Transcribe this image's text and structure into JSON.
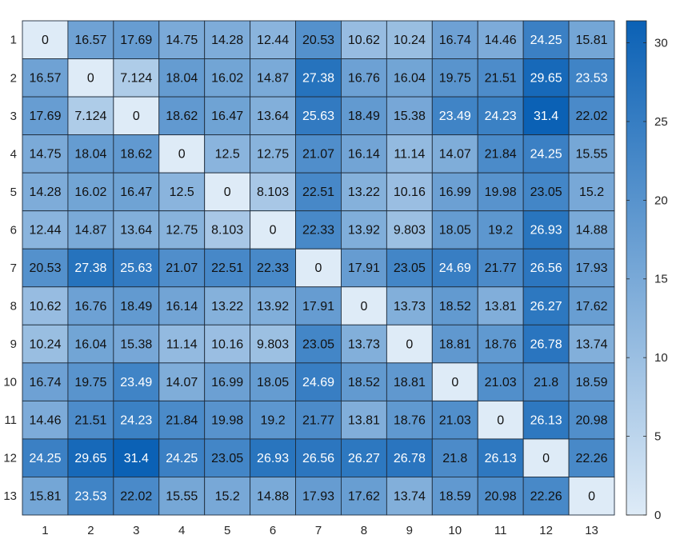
{
  "chart_data": {
    "type": "heatmap",
    "title": "",
    "xlabel": "",
    "ylabel": "",
    "x_categories": [
      "1",
      "2",
      "3",
      "4",
      "5",
      "6",
      "7",
      "8",
      "9",
      "10",
      "11",
      "12",
      "13"
    ],
    "y_categories": [
      "1",
      "2",
      "3",
      "4",
      "5",
      "6",
      "7",
      "8",
      "9",
      "10",
      "11",
      "12",
      "13"
    ],
    "labels": [
      [
        "0",
        "16.57",
        "17.69",
        "14.75",
        "14.28",
        "12.44",
        "20.53",
        "10.62",
        "10.24",
        "16.74",
        "14.46",
        "24.25",
        "15.81"
      ],
      [
        "16.57",
        "0",
        "7.124",
        "18.04",
        "16.02",
        "14.87",
        "27.38",
        "16.76",
        "16.04",
        "19.75",
        "21.51",
        "29.65",
        "23.53"
      ],
      [
        "17.69",
        "7.124",
        "0",
        "18.62",
        "16.47",
        "13.64",
        "25.63",
        "18.49",
        "15.38",
        "23.49",
        "24.23",
        "31.4",
        "22.02"
      ],
      [
        "14.75",
        "18.04",
        "18.62",
        "0",
        "12.5",
        "12.75",
        "21.07",
        "16.14",
        "11.14",
        "14.07",
        "21.84",
        "24.25",
        "15.55"
      ],
      [
        "14.28",
        "16.02",
        "16.47",
        "12.5",
        "0",
        "8.103",
        "22.51",
        "13.22",
        "10.16",
        "16.99",
        "19.98",
        "23.05",
        "15.2"
      ],
      [
        "12.44",
        "14.87",
        "13.64",
        "12.75",
        "8.103",
        "0",
        "22.33",
        "13.92",
        "9.803",
        "18.05",
        "19.2",
        "26.93",
        "14.88"
      ],
      [
        "20.53",
        "27.38",
        "25.63",
        "21.07",
        "22.51",
        "22.33",
        "0",
        "17.91",
        "23.05",
        "24.69",
        "21.77",
        "26.56",
        "17.93"
      ],
      [
        "10.62",
        "16.76",
        "18.49",
        "16.14",
        "13.22",
        "13.92",
        "17.91",
        "0",
        "13.73",
        "18.52",
        "13.81",
        "26.27",
        "17.62"
      ],
      [
        "10.24",
        "16.04",
        "15.38",
        "11.14",
        "10.16",
        "9.803",
        "23.05",
        "13.73",
        "0",
        "18.81",
        "18.76",
        "26.78",
        "13.74"
      ],
      [
        "16.74",
        "19.75",
        "23.49",
        "14.07",
        "16.99",
        "18.05",
        "24.69",
        "18.52",
        "18.81",
        "0",
        "21.03",
        "21.8",
        "18.59"
      ],
      [
        "14.46",
        "21.51",
        "24.23",
        "21.84",
        "19.98",
        "19.2",
        "21.77",
        "13.81",
        "18.76",
        "21.03",
        "0",
        "26.13",
        "20.98"
      ],
      [
        "24.25",
        "29.65",
        "31.4",
        "24.25",
        "23.05",
        "26.93",
        "26.56",
        "26.27",
        "26.78",
        "21.8",
        "26.13",
        "0",
        "22.26"
      ],
      [
        "15.81",
        "23.53",
        "22.02",
        "15.55",
        "15.2",
        "14.88",
        "17.93",
        "17.62",
        "13.74",
        "18.59",
        "20.98",
        "22.26",
        "0"
      ]
    ],
    "colorbar": {
      "range": [
        0,
        31.4
      ],
      "ticks": [
        "0",
        "5",
        "10",
        "15",
        "20",
        "25",
        "30"
      ],
      "colormap": [
        "#deebf7",
        "#0b61b5"
      ]
    },
    "grid": true,
    "legend": "none"
  }
}
